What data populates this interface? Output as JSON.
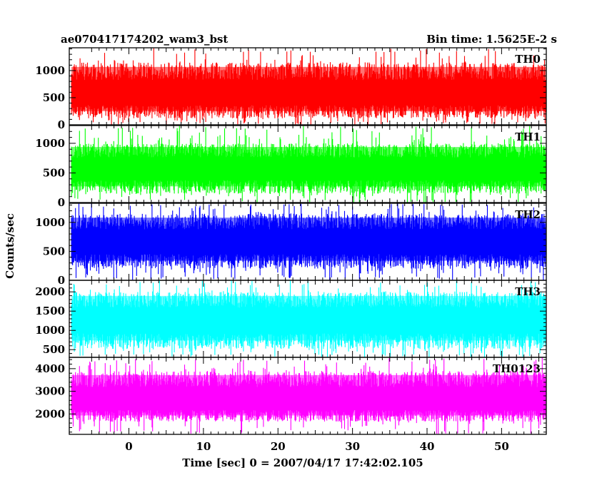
{
  "chart_data": {
    "type": "line",
    "title": "ae070417174202_wam3_bst",
    "subtitle": "Bin time: 1.5625E-2 s",
    "xlabel": "Time [sec] 0 = 2007/04/17 17:42:02.105",
    "ylabel": "Counts/sec",
    "xlim": [
      -8,
      56
    ],
    "x_range_data": [
      -7.7,
      56.1
    ],
    "x_ticks": [
      0,
      10,
      20,
      30,
      40,
      50
    ],
    "x_tick_labels": [
      "0",
      "10",
      "20",
      "30",
      "40",
      "50"
    ],
    "grid": false,
    "panels": [
      {
        "name": "TH0",
        "color": "#ff0000",
        "ylim": [
          0,
          1420
        ],
        "y_ticks": [
          0,
          500,
          1000
        ],
        "y_tick_labels": [
          "0",
          "500",
          "1000"
        ],
        "mean": 560,
        "low": 120,
        "high": 1150,
        "spike_max": 1420,
        "spike_min": 0
      },
      {
        "name": "TH1",
        "color": "#00ff00",
        "ylim": [
          0,
          1300
        ],
        "y_ticks": [
          0,
          500,
          1000
        ],
        "y_tick_labels": [
          "0",
          "500",
          "1000"
        ],
        "mean": 560,
        "low": 150,
        "high": 1000,
        "spike_max": 1300,
        "spike_min": 0
      },
      {
        "name": "TH2",
        "color": "#0000ff",
        "ylim": [
          0,
          1330
        ],
        "y_ticks": [
          0,
          500,
          1000
        ],
        "y_tick_labels": [
          "0",
          "500",
          "1000"
        ],
        "mean": 660,
        "low": 200,
        "high": 1150,
        "spike_max": 1330,
        "spike_min": 0
      },
      {
        "name": "TH3",
        "color": "#00ffff",
        "ylim": [
          300,
          2300
        ],
        "y_ticks": [
          500,
          1000,
          1500,
          2000
        ],
        "y_tick_labels": [
          "500",
          "1000",
          "1500",
          "2000"
        ],
        "mean": 1250,
        "low": 520,
        "high": 2000,
        "spike_max": 2300,
        "spike_min": 300
      },
      {
        "name": "TH0123",
        "color": "#ff00ff",
        "ylim": [
          1100,
          4500
        ],
        "y_ticks": [
          2000,
          3000,
          4000
        ],
        "y_tick_labels": [
          "2000",
          "3000",
          "4000"
        ],
        "mean": 2600,
        "low": 1650,
        "high": 3900,
        "spike_max": 4500,
        "spike_min": 1100
      }
    ]
  }
}
